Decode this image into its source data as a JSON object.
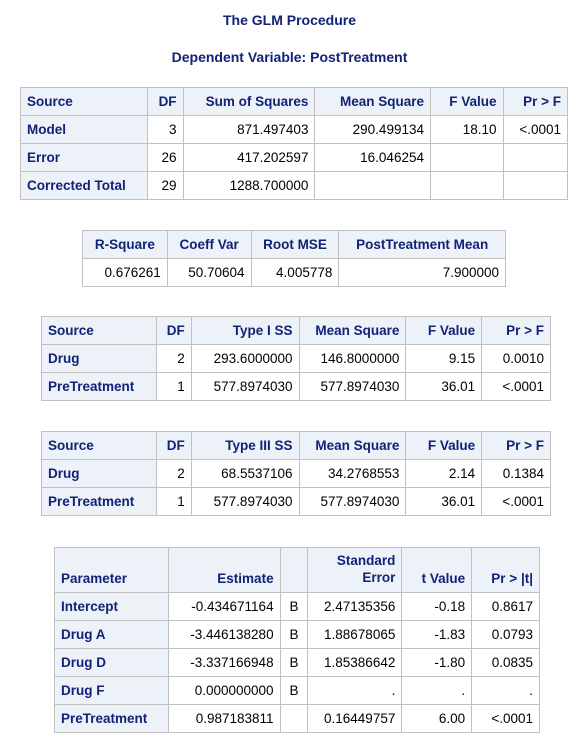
{
  "proc_title": "The GLM Procedure",
  "dependent_title": "Dependent Variable: PostTreatment",
  "anova": {
    "headers": [
      "Source",
      "DF",
      "Sum of Squares",
      "Mean Square",
      "F Value",
      "Pr > F"
    ],
    "rows": [
      {
        "source": "Model",
        "df": "3",
        "ss": "871.497403",
        "ms": "290.499134",
        "f": "18.10",
        "p": "<.0001"
      },
      {
        "source": "Error",
        "df": "26",
        "ss": "417.202597",
        "ms": "16.046254",
        "f": "",
        "p": ""
      },
      {
        "source": "Corrected Total",
        "df": "29",
        "ss": "1288.700000",
        "ms": "",
        "f": "",
        "p": ""
      }
    ]
  },
  "fit": {
    "headers": [
      "R-Square",
      "Coeff Var",
      "Root MSE",
      "PostTreatment Mean"
    ],
    "values": [
      "0.676261",
      "50.70604",
      "4.005778",
      "7.900000"
    ]
  },
  "type1": {
    "headers": [
      "Source",
      "DF",
      "Type I SS",
      "Mean Square",
      "F Value",
      "Pr > F"
    ],
    "rows": [
      {
        "source": "Drug",
        "df": "2",
        "ss": "293.6000000",
        "ms": "146.8000000",
        "f": "9.15",
        "p": "0.0010"
      },
      {
        "source": "PreTreatment",
        "df": "1",
        "ss": "577.8974030",
        "ms": "577.8974030",
        "f": "36.01",
        "p": "<.0001"
      }
    ]
  },
  "type3": {
    "headers": [
      "Source",
      "DF",
      "Type III SS",
      "Mean Square",
      "F Value",
      "Pr > F"
    ],
    "rows": [
      {
        "source": "Drug",
        "df": "2",
        "ss": "68.5537106",
        "ms": "34.2768553",
        "f": "2.14",
        "p": "0.1384"
      },
      {
        "source": "PreTreatment",
        "df": "1",
        "ss": "577.8974030",
        "ms": "577.8974030",
        "f": "36.01",
        "p": "<.0001"
      }
    ]
  },
  "params": {
    "headers": [
      "Parameter",
      "Estimate",
      "",
      "Standard Error",
      "t Value",
      "Pr > |t|"
    ],
    "rows": [
      {
        "name": "Intercept",
        "est": "-0.434671164",
        "flag": "B",
        "se": "2.47135356",
        "t": "-0.18",
        "p": "0.8617"
      },
      {
        "name": "Drug A",
        "est": "-3.446138280",
        "flag": "B",
        "se": "1.88678065",
        "t": "-1.83",
        "p": "0.0793"
      },
      {
        "name": "Drug D",
        "est": "-3.337166948",
        "flag": "B",
        "se": "1.85386642",
        "t": "-1.80",
        "p": "0.0835"
      },
      {
        "name": "Drug F",
        "est": "0.000000000",
        "flag": "B",
        "se": ".",
        "t": ".",
        "p": "."
      },
      {
        "name": "PreTreatment",
        "est": "0.987183811",
        "flag": "",
        "se": "0.16449757",
        "t": "6.00",
        "p": "<.0001"
      }
    ]
  },
  "colors": {
    "header_bg": "#edf2f9",
    "header_text": "#112277",
    "border": "#c1c1c1"
  }
}
